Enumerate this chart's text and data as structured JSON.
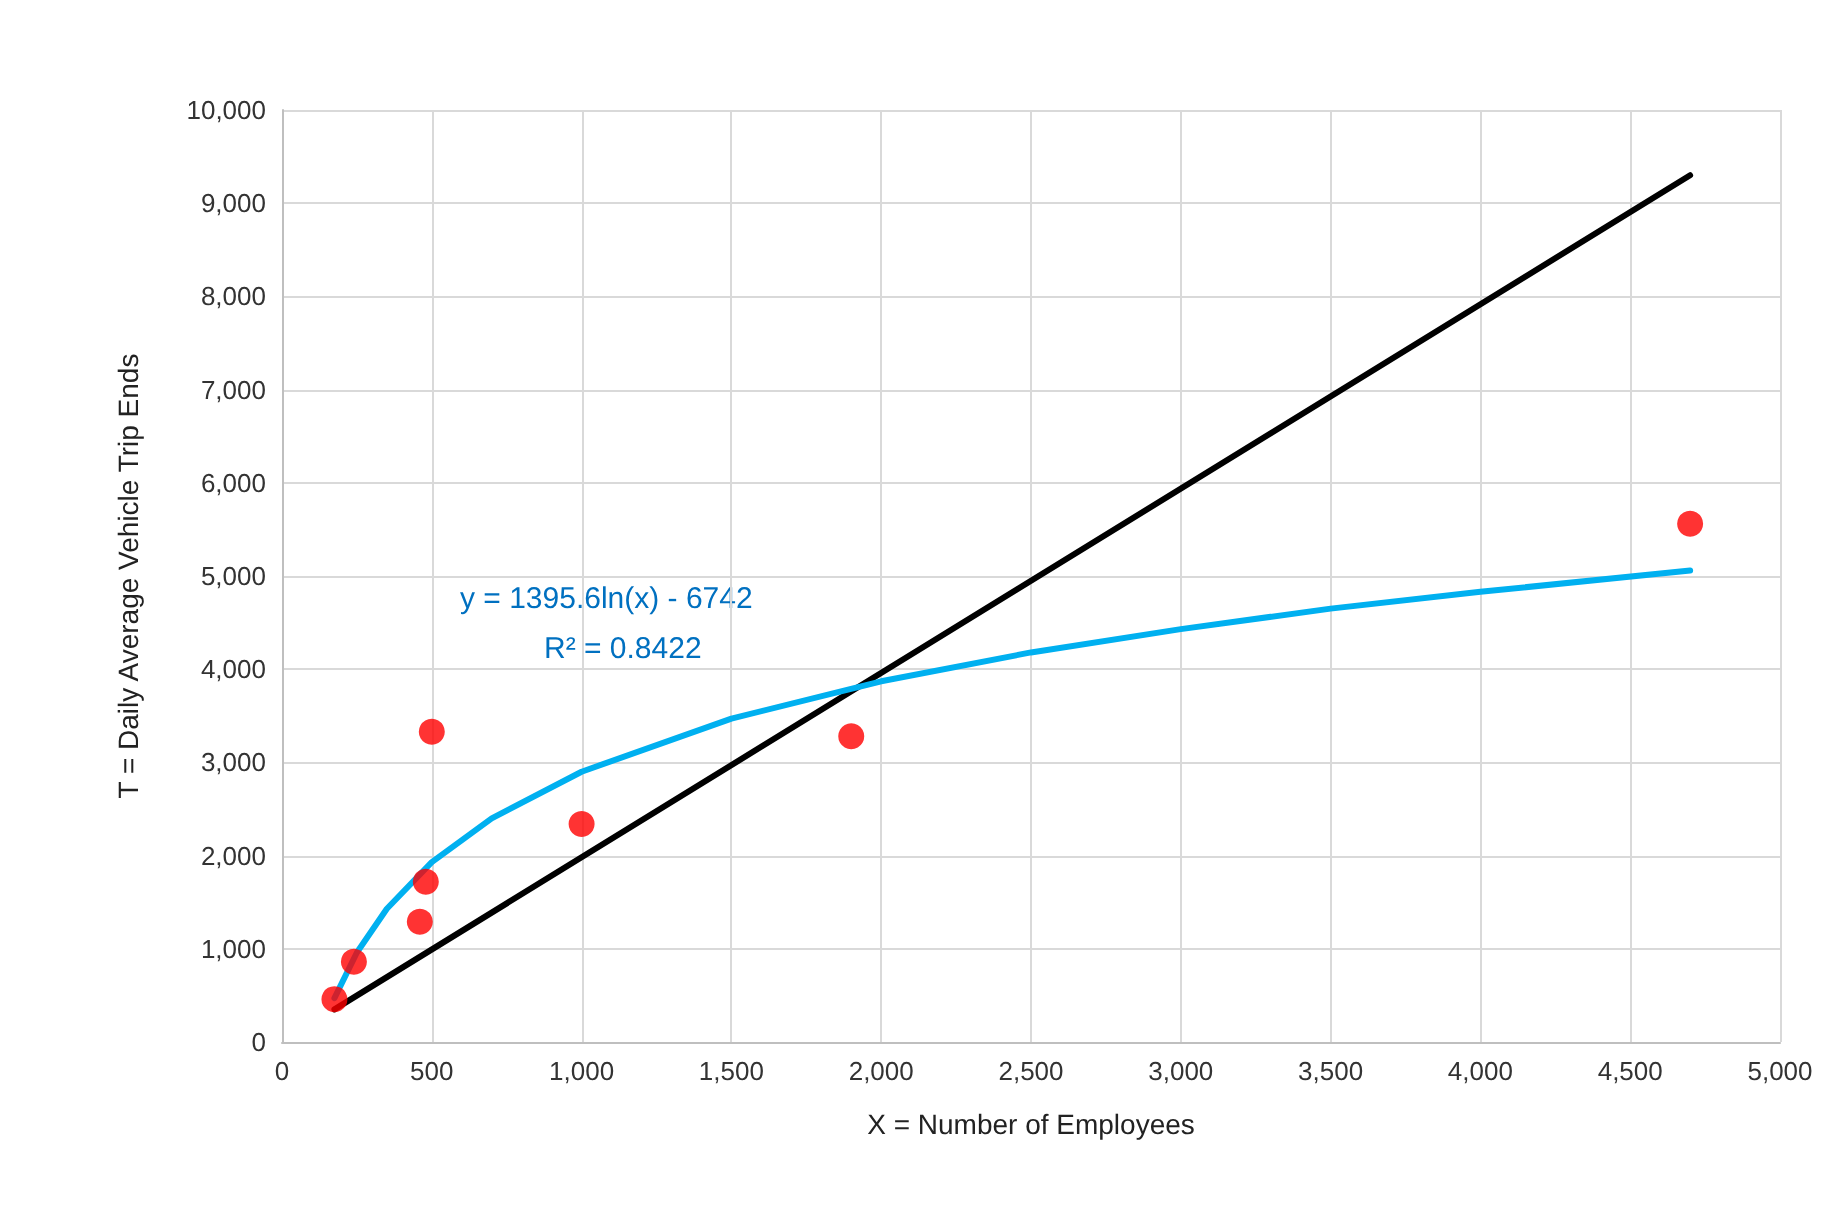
{
  "chart_data": {
    "type": "scatter",
    "xlabel": "X = Number of Employees",
    "ylabel": "T = Daily Average Vehicle Trip Ends",
    "xlim": [
      0,
      5000
    ],
    "xticks": [
      0,
      500,
      {
        "value": 1000,
        "label": "1,000"
      },
      {
        "value": 1500,
        "label": "1,500"
      },
      {
        "value": 2000,
        "label": "2,000"
      },
      {
        "value": 2500,
        "label": "2,500"
      },
      {
        "value": 3000,
        "label": "3,000"
      },
      {
        "value": 3500,
        "label": "3,500"
      },
      {
        "value": 4000,
        "label": "4,000"
      },
      {
        "value": 4500,
        "label": "4,500"
      },
      {
        "value": 5000,
        "label": "5,000"
      }
    ],
    "ylim": [
      0,
      10000
    ],
    "yticks": [
      0,
      {
        "value": 1000,
        "label": "1,000"
      },
      {
        "value": 2000,
        "label": "2,000"
      },
      {
        "value": 3000,
        "label": "3,000"
      },
      {
        "value": 4000,
        "label": "4,000"
      },
      {
        "value": 5000,
        "label": "5,000"
      },
      {
        "value": 6000,
        "label": "6,000"
      },
      {
        "value": 7000,
        "label": "7,000"
      },
      {
        "value": 8000,
        "label": "8,000"
      },
      {
        "value": 9000,
        "label": "9,000"
      },
      {
        "value": 10000,
        "label": "10,000"
      }
    ],
    "grid": true,
    "annotations": [
      "y = 1395.6ln(x) - 6742",
      "R² = 0.8422"
    ],
    "series": [
      {
        "type": "line",
        "color": "#000000",
        "marker": "none",
        "x": [
          175,
          4700
        ],
        "values": [
          350,
          9300
        ]
      },
      {
        "type": "line",
        "color": "#00b0f0",
        "marker": "none",
        "x": [
          175,
          250,
          350,
          500,
          700,
          1000,
          1500,
          2000,
          2500,
          3000,
          3500,
          4000,
          4700
        ],
        "values": [
          470,
          960,
          1430,
          1930,
          2400,
          2900,
          3470,
          3870,
          4180,
          4430,
          4650,
          4830,
          5060
        ]
      },
      {
        "color": "#ff0000",
        "marker": "circle",
        "x": [
          175,
          240,
          460,
          480,
          500,
          1000,
          1900,
          4700
        ],
        "values": [
          460,
          860,
          1290,
          1720,
          3330,
          2340,
          3280,
          5560
        ]
      }
    ]
  }
}
